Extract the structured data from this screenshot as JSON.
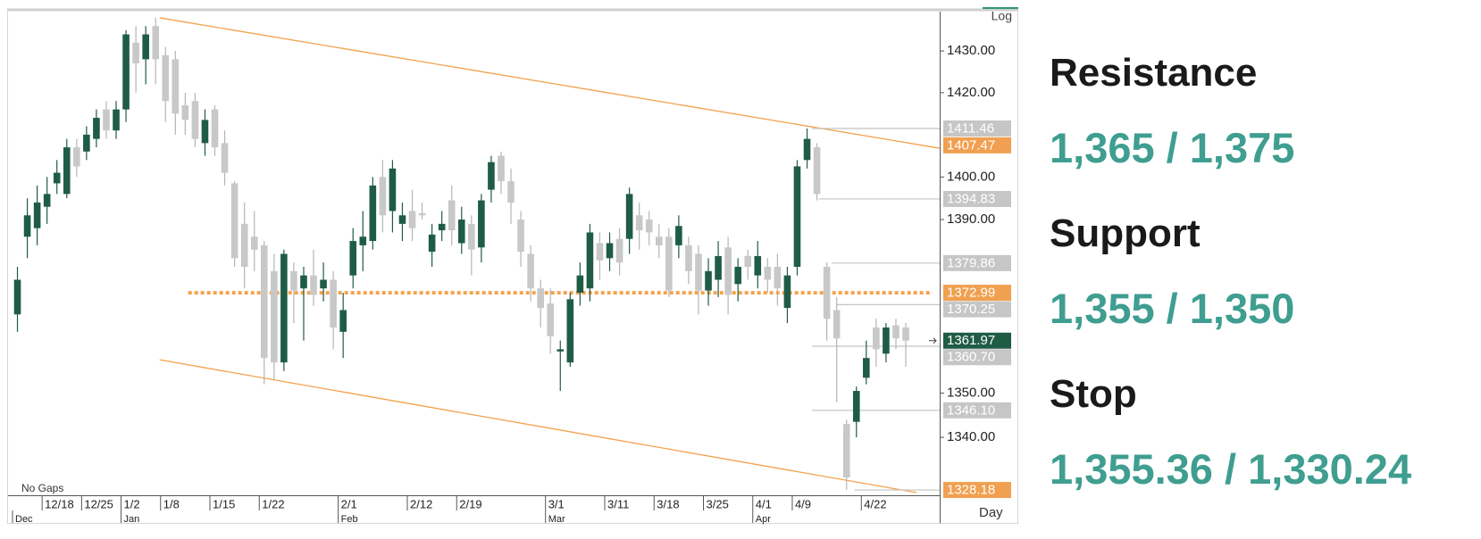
{
  "chart_data": {
    "type": "candlestick",
    "log": true,
    "ylim": [
      1327,
      1439.5
    ],
    "yticks": [
      {
        "value": 1340,
        "label": "1340.00"
      },
      {
        "value": 1350,
        "label": "1350.00"
      },
      {
        "value": 1390,
        "label": "1390.00"
      },
      {
        "value": 1400,
        "label": "1400.00"
      },
      {
        "value": 1420,
        "label": "1420.00"
      },
      {
        "value": 1430,
        "label": "1430.00"
      }
    ],
    "scale_label": "Log",
    "period_label": "Day",
    "gap_note": "No Gaps",
    "up_color": "#1f5c45",
    "down_color": "#c8c8c8",
    "categories": [
      null,
      null,
      null,
      "12/18",
      null,
      null,
      null,
      "12/25",
      null,
      null,
      null,
      "1/2",
      null,
      null,
      null,
      "1/8",
      null,
      null,
      null,
      null,
      "1/15",
      null,
      null,
      null,
      null,
      "1/22",
      null,
      null,
      null,
      null,
      null,
      null,
      null,
      "2/1",
      null,
      null,
      null,
      null,
      null,
      null,
      "2/12",
      null,
      null,
      null,
      null,
      "2/19",
      null,
      null,
      null,
      null,
      null,
      null,
      null,
      null,
      "3/1",
      null,
      null,
      null,
      null,
      null,
      "3/11",
      null,
      null,
      null,
      null,
      "3/18",
      null,
      null,
      null,
      null,
      "3/25",
      null,
      null,
      null,
      null,
      "4/1",
      null,
      null,
      null,
      "4/9",
      null,
      null,
      null,
      null,
      null,
      null,
      "4/22",
      null,
      null,
      null,
      null
    ],
    "months": [
      "Dec",
      null,
      null,
      null,
      null,
      null,
      null,
      null,
      null,
      null,
      null,
      "Jan",
      null,
      null,
      null,
      null,
      null,
      null,
      null,
      null,
      null,
      null,
      null,
      null,
      null,
      null,
      null,
      null,
      null,
      null,
      null,
      null,
      null,
      "Feb",
      null,
      null,
      null,
      null,
      null,
      null,
      null,
      null,
      null,
      null,
      null,
      null,
      null,
      null,
      null,
      null,
      null,
      null,
      null,
      null,
      "Mar",
      null,
      null,
      null,
      null,
      null,
      null,
      null,
      null,
      null,
      null,
      null,
      null,
      null,
      null,
      null,
      null,
      null,
      null,
      null,
      null,
      "Apr",
      null,
      null,
      null,
      null,
      null,
      null,
      null,
      null,
      null,
      null,
      null,
      null,
      null,
      null,
      null
    ],
    "open": [
      1368,
      1386,
      1388,
      1393,
      1398.5,
      1396,
      1407,
      1406,
      1409,
      1416,
      1411,
      1416,
      1432,
      1428,
      1436,
      1429,
      1428,
      1417,
      1418,
      1408,
      1416,
      1408,
      1398.5,
      1389,
      1386,
      1384,
      1378,
      1357,
      1378,
      1374,
      1377,
      1374,
      1376,
      1364,
      1377,
      1384,
      1385,
      1400,
      1392,
      1389,
      1392,
      1391.5,
      1382.5,
      1387.5,
      1394.5,
      1384.5,
      1389,
      1383.5,
      1397,
      1405,
      1399,
      1390,
      1382,
      1374,
      1370.5,
      1359.5,
      1357,
      1373,
      1374,
      1384.5,
      1381,
      1385.5,
      1385.5,
      1391,
      1390,
      1386,
      1386,
      1384,
      1384,
      1382,
      1373.5,
      1376,
      1383.5,
      1375,
      1381.5,
      1377,
      1379,
      1379,
      1369.5,
      1379,
      1404,
      1407,
      1379,
      1369,
      1343,
      1343.5,
      1353.5,
      1365,
      1359,
      1365.5,
      1365
    ],
    "high": [
      1379,
      1395,
      1398,
      1400,
      1404,
      1409,
      1409,
      1412,
      1416,
      1418,
      1418,
      1435,
      1436,
      1436,
      1438,
      1431,
      1430,
      1420,
      1420,
      1416,
      1417,
      1411,
      1399,
      1394,
      1392,
      1385,
      1382,
      1383,
      1380,
      1379,
      1383,
      1380,
      1378,
      1373,
      1388,
      1392,
      1400,
      1404,
      1404,
      1394,
      1397,
      1394,
      1389,
      1392,
      1398,
      1393,
      1391,
      1396,
      1405,
      1406,
      1402,
      1392,
      1384,
      1376,
      1374,
      1362,
      1373,
      1380,
      1389,
      1387,
      1387,
      1388,
      1397.5,
      1394,
      1392,
      1389,
      1388,
      1391,
      1386,
      1384,
      1381,
      1385,
      1386,
      1381,
      1383,
      1385,
      1381,
      1382,
      1379,
      1404,
      1411.46,
      1408,
      1380,
      1372,
      1344,
      1351.5,
      1362,
      1367,
      1366,
      1367,
      1366
    ],
    "low": [
      1364,
      1381,
      1384,
      1389,
      1396,
      1395,
      1400,
      1404,
      1407,
      1409,
      1409,
      1413,
      1420,
      1422,
      1422,
      1413,
      1410,
      1410,
      1407,
      1405,
      1405,
      1398,
      1379,
      1374,
      1378,
      1352,
      1353,
      1355,
      1366,
      1362,
      1370,
      1371,
      1360,
      1358,
      1374,
      1378,
      1383,
      1387,
      1387,
      1385,
      1385,
      1390,
      1379,
      1385,
      1384,
      1382,
      1377,
      1380,
      1394,
      1396,
      1389,
      1379,
      1371,
      1365,
      1359,
      1350.5,
      1356,
      1370,
      1371,
      1376,
      1378,
      1377,
      1382,
      1383,
      1384,
      1381,
      1372,
      1381,
      1375,
      1368,
      1370,
      1372,
      1368,
      1371,
      1376,
      1374,
      1373,
      1370,
      1366,
      1377,
      1402,
      1394.5,
      1362,
      1348,
      1328.18,
      1340,
      1352,
      1356,
      1357,
      1360,
      1356
    ],
    "close": [
      1376,
      1391,
      1394,
      1396,
      1401,
      1407,
      1402.5,
      1410,
      1414,
      1411,
      1416,
      1434,
      1427,
      1434,
      1428,
      1418,
      1415,
      1413.5,
      1409,
      1413.5,
      1407,
      1401,
      1381,
      1379,
      1383,
      1358,
      1357,
      1382,
      1373.5,
      1377,
      1372.5,
      1376,
      1365,
      1369,
      1385,
      1386,
      1398,
      1391,
      1402,
      1391,
      1388,
      1391,
      1386.5,
      1389,
      1387.5,
      1390,
      1383,
      1394.5,
      1403.5,
      1399,
      1394,
      1382.5,
      1374,
      1369.5,
      1363,
      1360,
      1371.5,
      1377,
      1387,
      1380.5,
      1384.5,
      1380,
      1396,
      1387.5,
      1387,
      1384,
      1373.5,
      1388.5,
      1378,
      1373.5,
      1378,
      1381.5,
      1372.5,
      1379,
      1379,
      1381.5,
      1376,
      1374,
      1377,
      1402.5,
      1409,
      1396,
      1367,
      1362.5,
      1331,
      1350.5,
      1358,
      1360,
      1365,
      1362.5,
      1361.97
    ],
    "trendline_color": "#f4a04a",
    "trendlines": [
      {
        "x": [
          14.4,
          93.4
        ],
        "y": [
          1438,
          1406.8
        ]
      },
      {
        "x": [
          14.4,
          91.1
        ],
        "y": [
          1357.6,
          1327.6
        ]
      }
    ],
    "dotted_level": {
      "value": 1372.99,
      "x": [
        17.3,
        92.7
      ],
      "color": "#f5a34d"
    },
    "level_color": "#c4c4c4",
    "levels": [
      {
        "value": 1411.46,
        "from": 80.5
      },
      {
        "value": 1394.83,
        "from": 81.2
      },
      {
        "value": 1379.86,
        "from": 82.5
      },
      {
        "value": 1370.25,
        "from": 83
      },
      {
        "value": 1360.7,
        "from": 80.5
      },
      {
        "value": 1346.1,
        "from": 80.5
      },
      {
        "value": 1328.18,
        "from": 84.8
      }
    ],
    "price_labels": [
      {
        "value": 1411.46,
        "color": "#c6c6c6"
      },
      {
        "value": 1407.47,
        "color": "#f0a050"
      },
      {
        "value": 1394.83,
        "color": "#c6c6c6"
      },
      {
        "value": 1379.86,
        "color": "#c6c6c6"
      },
      {
        "value": 1372.99,
        "color": "#f0a050"
      },
      {
        "value": 1370.25,
        "color": "#c6c6c6"
      },
      {
        "value": 1361.97,
        "color": "#1f5c45"
      },
      {
        "value": 1360.7,
        "label": "1360.70",
        "color": "#c6c6c6"
      },
      {
        "value": 1346.1,
        "label": "1346.10",
        "color": "#c6c6c6"
      },
      {
        "value": 1328.18,
        "color": "#f0a050"
      }
    ]
  },
  "panel": {
    "items": [
      {
        "heading": "Resistance",
        "value": "1,365 / 1,375"
      },
      {
        "heading": "Support",
        "value": "1,355 / 1,350"
      },
      {
        "heading": "Stop",
        "value": "1,355.36 / 1,330.24"
      }
    ]
  }
}
